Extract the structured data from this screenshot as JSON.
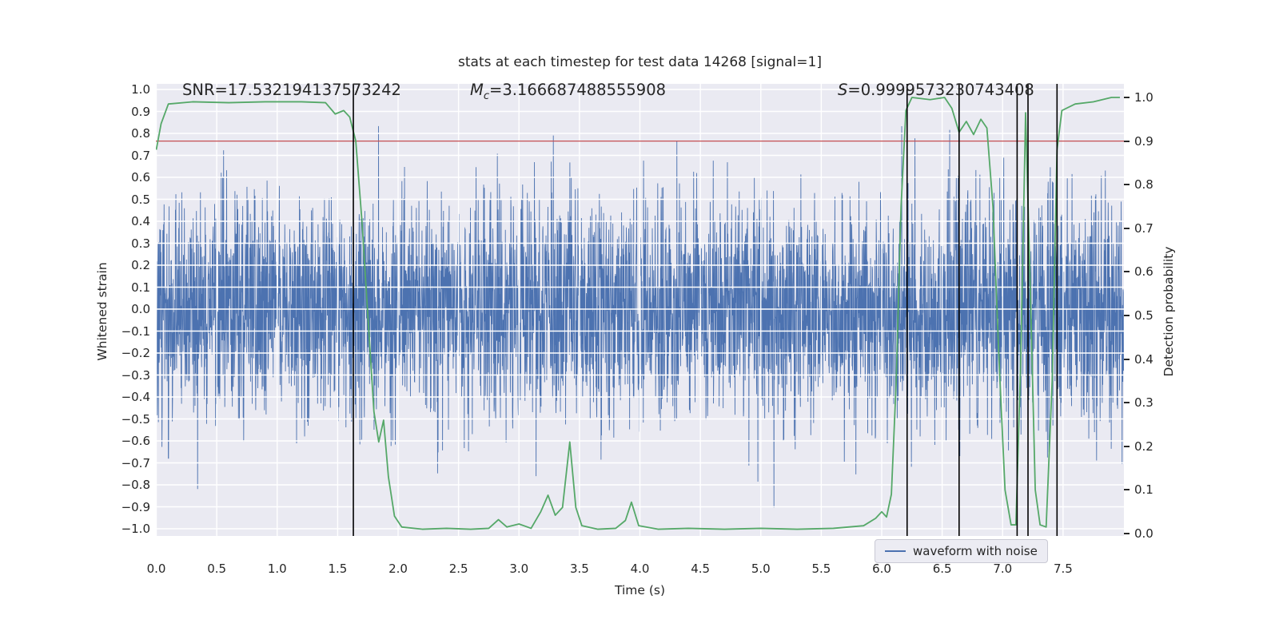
{
  "figure": {
    "title": "stats at each timestep for test data 14268 [signal=1]",
    "xlabel": "Time (s)",
    "ylabel_left": "Whitened strain",
    "ylabel_right": "Detection probability",
    "legend_label": "waveform with noise"
  },
  "annotations": {
    "snr": "SNR=17.532194137573242",
    "mc_symbol": "M",
    "mc_subscript": "c",
    "mc_value": "=3.166687488555908",
    "s_symbol": "S",
    "s_value": "=0.9999573230743408"
  },
  "chart_data": {
    "type": "line",
    "title": "stats at each timestep for test data 14268 [signal=1]",
    "xlabel": "Time (s)",
    "ylabel": "Whitened strain",
    "ylabel_right": "Detection probability",
    "xlim": [
      0,
      8
    ],
    "ylim": [
      -1.03,
      1.03
    ],
    "ylim_right": [
      -0.005,
      1.03
    ],
    "x_ticks": [
      0.0,
      0.5,
      1.0,
      1.5,
      2.0,
      2.5,
      3.0,
      3.5,
      4.0,
      4.5,
      5.0,
      5.5,
      6.0,
      6.5,
      7.0,
      7.5
    ],
    "y_ticks": [
      -1.0,
      -0.9,
      -0.8,
      -0.7,
      -0.6,
      -0.5,
      -0.4,
      -0.3,
      -0.2,
      -0.1,
      0.0,
      0.1,
      0.2,
      0.3,
      0.4,
      0.5,
      0.6,
      0.7,
      0.8,
      0.9,
      1.0
    ],
    "y_ticks_right": [
      0.0,
      0.1,
      0.2,
      0.3,
      0.4,
      0.5,
      0.6,
      0.7,
      0.8,
      0.9,
      1.0
    ],
    "grid": true,
    "background": "#eaeaf2",
    "grid_color": "#ffffff",
    "threshold_line": {
      "axis": "right",
      "value": 0.9,
      "color": "#c44e52"
    },
    "event_vlines": {
      "color": "#000000",
      "x": [
        1.63,
        6.21,
        6.64,
        7.12,
        7.21,
        7.45
      ]
    },
    "series": [
      {
        "name": "waveform with noise",
        "axis": "left",
        "color": "#4c72b0",
        "kind": "gaussian-noise",
        "n_samples": 4096,
        "noise_std": 0.25,
        "seed": 14268,
        "x_range": [
          0,
          8
        ]
      },
      {
        "name": "detection probability",
        "axis": "right",
        "color": "#55a868",
        "kind": "line",
        "points": [
          [
            0.0,
            0.88
          ],
          [
            0.04,
            0.94
          ],
          [
            0.1,
            0.985
          ],
          [
            0.3,
            0.99
          ],
          [
            0.6,
            0.988
          ],
          [
            0.9,
            0.99
          ],
          [
            1.2,
            0.99
          ],
          [
            1.4,
            0.988
          ],
          [
            1.48,
            0.962
          ],
          [
            1.55,
            0.97
          ],
          [
            1.6,
            0.955
          ],
          [
            1.65,
            0.9
          ],
          [
            1.7,
            0.72
          ],
          [
            1.75,
            0.5
          ],
          [
            1.8,
            0.28
          ],
          [
            1.84,
            0.21
          ],
          [
            1.88,
            0.26
          ],
          [
            1.92,
            0.13
          ],
          [
            1.97,
            0.04
          ],
          [
            2.03,
            0.015
          ],
          [
            2.2,
            0.01
          ],
          [
            2.4,
            0.012
          ],
          [
            2.6,
            0.01
          ],
          [
            2.75,
            0.012
          ],
          [
            2.83,
            0.032
          ],
          [
            2.9,
            0.015
          ],
          [
            3.0,
            0.022
          ],
          [
            3.1,
            0.012
          ],
          [
            3.18,
            0.05
          ],
          [
            3.24,
            0.088
          ],
          [
            3.3,
            0.042
          ],
          [
            3.36,
            0.06
          ],
          [
            3.42,
            0.21
          ],
          [
            3.47,
            0.06
          ],
          [
            3.52,
            0.018
          ],
          [
            3.65,
            0.01
          ],
          [
            3.8,
            0.012
          ],
          [
            3.88,
            0.03
          ],
          [
            3.93,
            0.072
          ],
          [
            3.99,
            0.018
          ],
          [
            4.15,
            0.01
          ],
          [
            4.4,
            0.012
          ],
          [
            4.7,
            0.01
          ],
          [
            5.0,
            0.012
          ],
          [
            5.3,
            0.01
          ],
          [
            5.6,
            0.012
          ],
          [
            5.85,
            0.018
          ],
          [
            5.95,
            0.035
          ],
          [
            6.0,
            0.05
          ],
          [
            6.04,
            0.038
          ],
          [
            6.08,
            0.09
          ],
          [
            6.12,
            0.35
          ],
          [
            6.16,
            0.75
          ],
          [
            6.2,
            0.97
          ],
          [
            6.25,
            1.0
          ],
          [
            6.4,
            0.995
          ],
          [
            6.52,
            1.0
          ],
          [
            6.58,
            0.975
          ],
          [
            6.64,
            0.92
          ],
          [
            6.7,
            0.945
          ],
          [
            6.76,
            0.915
          ],
          [
            6.82,
            0.95
          ],
          [
            6.87,
            0.93
          ],
          [
            6.92,
            0.75
          ],
          [
            6.97,
            0.4
          ],
          [
            7.02,
            0.1
          ],
          [
            7.07,
            0.02
          ],
          [
            7.11,
            0.02
          ],
          [
            7.15,
            0.4
          ],
          [
            7.19,
            0.965
          ],
          [
            7.23,
            0.55
          ],
          [
            7.27,
            0.1
          ],
          [
            7.31,
            0.02
          ],
          [
            7.36,
            0.015
          ],
          [
            7.41,
            0.35
          ],
          [
            7.45,
            0.88
          ],
          [
            7.49,
            0.97
          ],
          [
            7.6,
            0.985
          ],
          [
            7.75,
            0.99
          ],
          [
            7.9,
            1.0
          ],
          [
            7.97,
            1.0
          ]
        ]
      }
    ],
    "legend": {
      "labels": [
        "waveform with noise"
      ],
      "location": "lower right"
    }
  }
}
